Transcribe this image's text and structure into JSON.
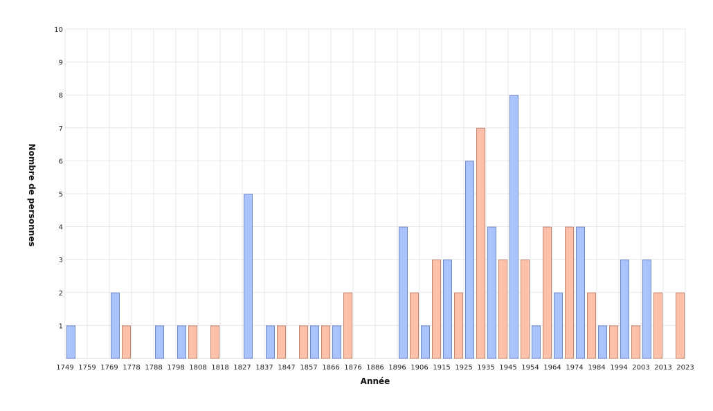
{
  "chart_data": {
    "type": "bar",
    "title": "",
    "xlabel": "Année",
    "ylabel": "Nombre de personnes",
    "ylim": [
      0,
      10
    ],
    "yticks": [
      1,
      2,
      3,
      4,
      5,
      6,
      7,
      8,
      9,
      10
    ],
    "grid": true,
    "legend": "none",
    "bin_edges": [
      "1749",
      "1759",
      "1769",
      "1778",
      "1788",
      "1798",
      "1808",
      "1818",
      "1827",
      "1837",
      "1847",
      "1857",
      "1866",
      "1876",
      "1886",
      "1896",
      "1906",
      "1915",
      "1925",
      "1935",
      "1945",
      "1954",
      "1964",
      "1974",
      "1984",
      "1994",
      "2003",
      "2013",
      "2023"
    ],
    "series": [
      {
        "color": "#aac3fb",
        "stroke": "#7388c8",
        "values": [
          1,
          0,
          2,
          0,
          1,
          1,
          0,
          0,
          5,
          1,
          0,
          1,
          1,
          0,
          0,
          4,
          1,
          3,
          6,
          4,
          8,
          1,
          2,
          4,
          1,
          3,
          3,
          0
        ]
      },
      {
        "color": "#fcc1a8",
        "stroke": "#bf8876",
        "values": [
          0,
          0,
          1,
          0,
          0,
          1,
          1,
          0,
          0,
          1,
          1,
          1,
          2,
          0,
          0,
          2,
          3,
          2,
          7,
          3,
          3,
          4,
          4,
          2,
          1,
          1,
          2,
          2
        ]
      }
    ]
  }
}
